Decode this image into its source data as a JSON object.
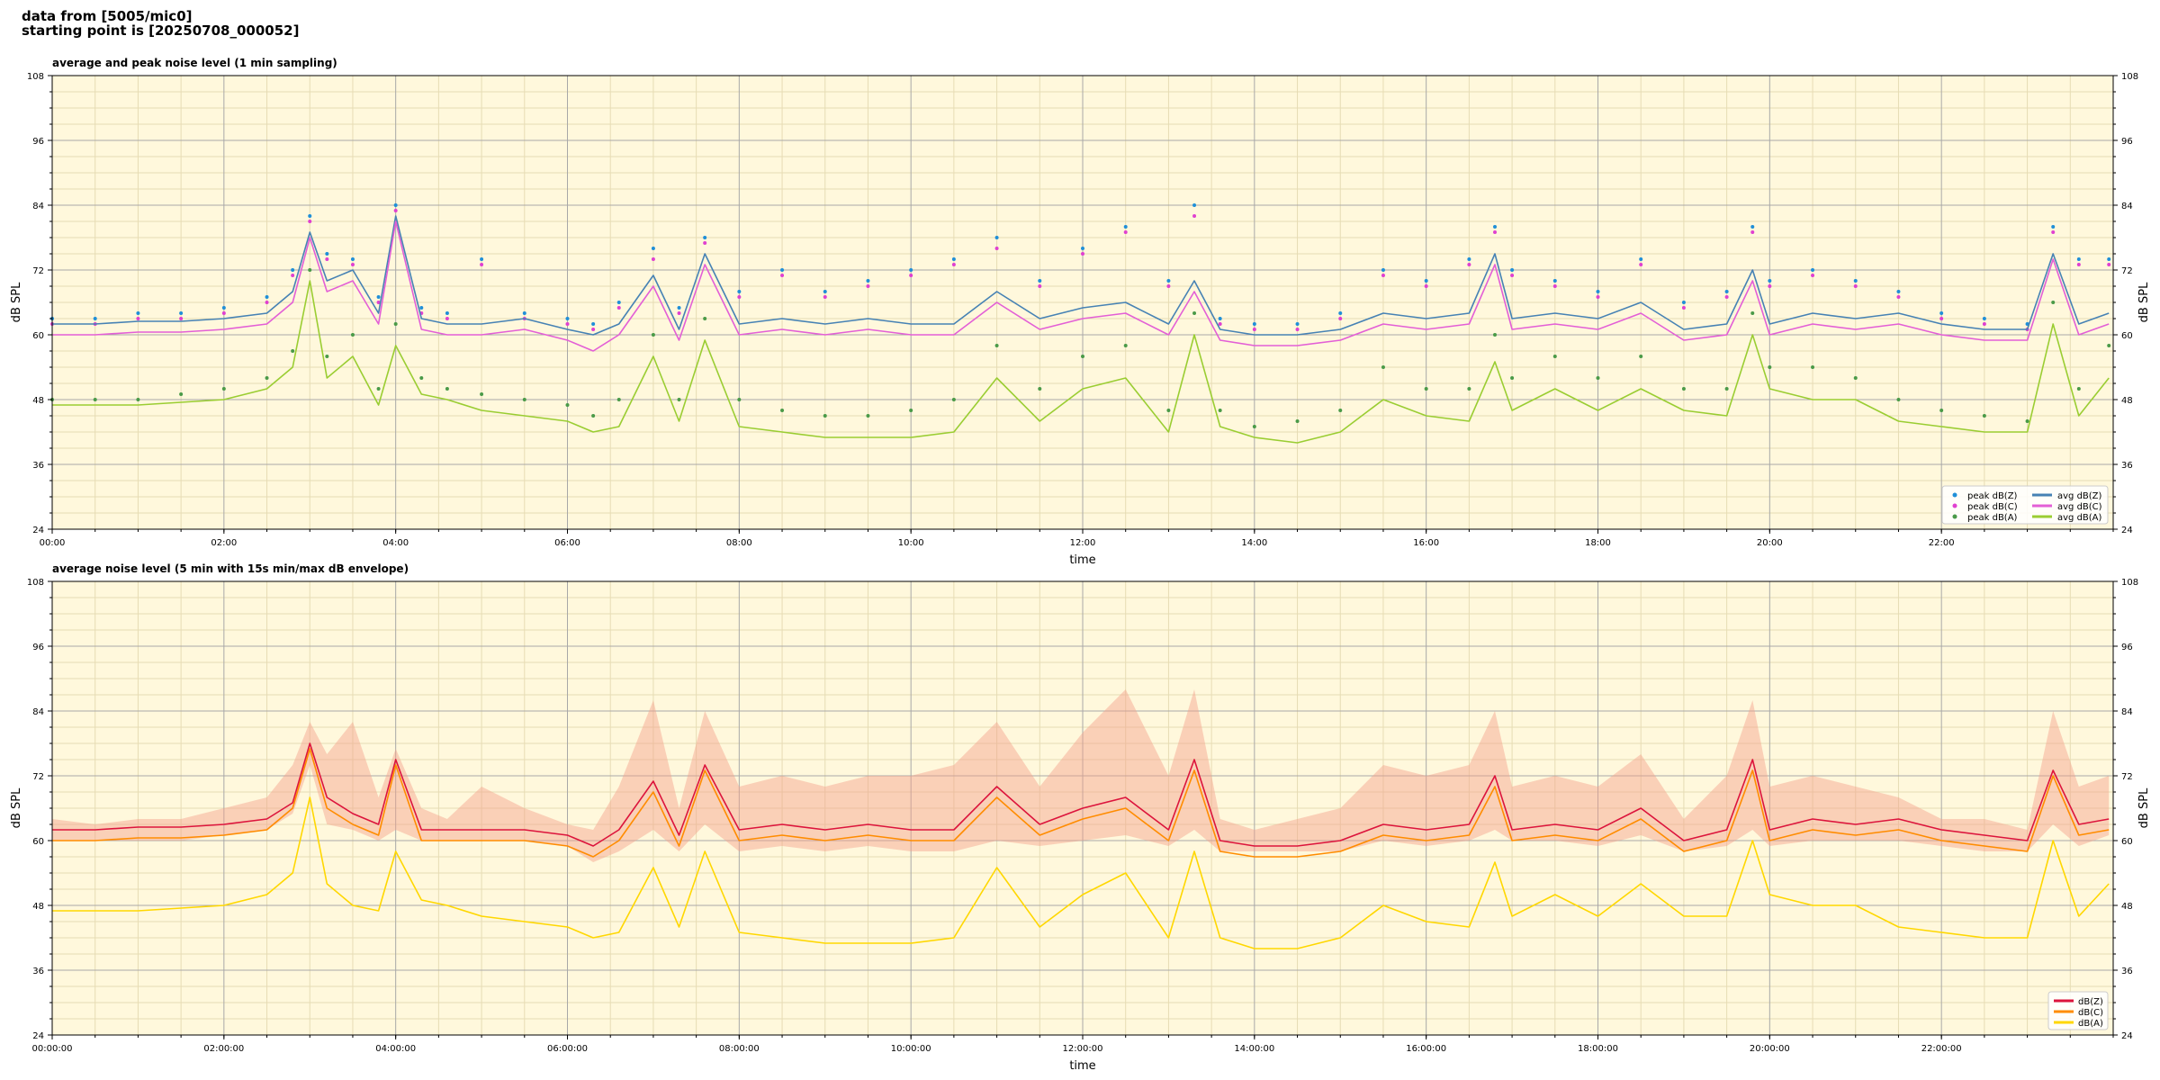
{
  "header": {
    "line1": "data from [5005/mic0]",
    "line2": "starting point is [20250708_000052]"
  },
  "colors": {
    "plot_bg": "#fff8dc",
    "grid_major": "#a8a8a8",
    "grid_minor": "#e6dcb4",
    "peak_z": "#1f8fd8",
    "peak_c": "#e040d0",
    "peak_a": "#4a9a48",
    "avg_z": "#4682b4",
    "avg_c": "#e35fd6",
    "avg_a": "#9acd32",
    "dbz": "#dc143c",
    "dbc": "#ff8c00",
    "dba": "#ffd700",
    "envelope": "#f4a08a"
  },
  "chart_data": [
    {
      "type": "line",
      "title": "average and peak noise level (1 min sampling)",
      "xlabel": "time",
      "ylabel": "dB SPL",
      "ylim": [
        24,
        108
      ],
      "xlim_hours": [
        0,
        24
      ],
      "yticks": [
        24,
        36,
        48,
        60,
        72,
        84,
        96,
        108
      ],
      "xtick_hours": [
        0,
        2,
        4,
        6,
        8,
        10,
        12,
        14,
        16,
        18,
        20,
        22
      ],
      "xtick_labels": [
        "00:00",
        "02:00",
        "04:00",
        "06:00",
        "08:00",
        "10:00",
        "12:00",
        "14:00",
        "16:00",
        "18:00",
        "20:00",
        "22:00"
      ],
      "grid": true,
      "legend_position": "lower-right",
      "legend_columns": 2,
      "x_hours": [
        0,
        0.5,
        1,
        1.5,
        2,
        2.5,
        2.8,
        3,
        3.2,
        3.5,
        3.8,
        4,
        4.3,
        4.6,
        5,
        5.5,
        6,
        6.3,
        6.6,
        7,
        7.3,
        7.6,
        8,
        8.5,
        9,
        9.5,
        10,
        10.5,
        11,
        11.5,
        12,
        12.5,
        13,
        13.3,
        13.6,
        14,
        14.5,
        15,
        15.5,
        16,
        16.5,
        16.8,
        17,
        17.5,
        18,
        18.5,
        19,
        19.5,
        19.8,
        20,
        20.5,
        21,
        21.5,
        22,
        22.5,
        23,
        23.3,
        23.6,
        23.95
      ],
      "series": [
        {
          "name": "avg dB(Z)",
          "style": "line",
          "values": [
            62,
            62,
            62.5,
            62.5,
            63,
            64,
            68,
            79,
            70,
            72,
            64,
            82,
            63,
            62,
            62,
            63,
            61,
            60,
            62,
            71,
            61,
            75,
            62,
            63,
            62,
            63,
            62,
            62,
            68,
            63,
            65,
            66,
            62,
            70,
            61,
            60,
            60,
            61,
            64,
            63,
            64,
            75,
            63,
            64,
            63,
            66,
            61,
            62,
            72,
            62,
            64,
            63,
            64,
            62,
            61,
            61,
            75,
            62,
            64
          ]
        },
        {
          "name": "avg dB(C)",
          "style": "line",
          "values": [
            60,
            60,
            60.5,
            60.5,
            61,
            62,
            66,
            78,
            68,
            70,
            62,
            81,
            61,
            60,
            60,
            61,
            59,
            57,
            60,
            69,
            59,
            73,
            60,
            61,
            60,
            61,
            60,
            60,
            66,
            61,
            63,
            64,
            60,
            68,
            59,
            58,
            58,
            59,
            62,
            61,
            62,
            73,
            61,
            62,
            61,
            64,
            59,
            60,
            70,
            60,
            62,
            61,
            62,
            60,
            59,
            59,
            74,
            60,
            62
          ]
        },
        {
          "name": "avg dB(A)",
          "style": "line",
          "values": [
            47,
            47,
            47,
            47.5,
            48,
            50,
            54,
            70,
            52,
            56,
            47,
            58,
            49,
            48,
            46,
            45,
            44,
            42,
            43,
            56,
            44,
            59,
            43,
            42,
            41,
            41,
            41,
            42,
            52,
            44,
            50,
            52,
            42,
            60,
            43,
            41,
            40,
            42,
            48,
            45,
            44,
            55,
            46,
            50,
            46,
            50,
            46,
            45,
            60,
            50,
            48,
            48,
            44,
            43,
            42,
            42,
            62,
            45,
            52
          ]
        },
        {
          "name": "peak dB(Z)",
          "style": "points",
          "values": [
            63,
            63,
            64,
            64,
            65,
            67,
            72,
            82,
            75,
            74,
            67,
            84,
            65,
            64,
            74,
            64,
            63,
            62,
            66,
            76,
            65,
            78,
            68,
            72,
            68,
            70,
            72,
            74,
            78,
            70,
            76,
            80,
            70,
            84,
            63,
            62,
            62,
            64,
            72,
            70,
            74,
            80,
            72,
            70,
            68,
            74,
            66,
            68,
            80,
            70,
            72,
            70,
            68,
            64,
            63,
            62,
            80,
            74,
            74
          ]
        },
        {
          "name": "peak dB(C)",
          "style": "points",
          "values": [
            62,
            62,
            63,
            63,
            64,
            66,
            71,
            81,
            74,
            73,
            66,
            83,
            64,
            63,
            73,
            63,
            62,
            61,
            65,
            74,
            64,
            77,
            67,
            71,
            67,
            69,
            71,
            73,
            76,
            69,
            75,
            79,
            69,
            82,
            62,
            61,
            61,
            63,
            71,
            69,
            73,
            79,
            71,
            69,
            67,
            73,
            65,
            67,
            79,
            69,
            71,
            69,
            67,
            63,
            62,
            61,
            79,
            73,
            73
          ]
        },
        {
          "name": "peak dB(A)",
          "style": "points",
          "values": [
            48,
            48,
            48,
            49,
            50,
            52,
            57,
            72,
            56,
            60,
            50,
            62,
            52,
            50,
            49,
            48,
            47,
            45,
            48,
            60,
            48,
            63,
            48,
            46,
            45,
            45,
            46,
            48,
            58,
            50,
            56,
            58,
            46,
            64,
            46,
            43,
            44,
            46,
            54,
            50,
            50,
            60,
            52,
            56,
            52,
            56,
            50,
            50,
            64,
            54,
            54,
            52,
            48,
            46,
            45,
            44,
            66,
            50,
            58
          ]
        }
      ]
    },
    {
      "type": "line",
      "title": "average noise level (5 min with 15s min/max dB envelope)",
      "xlabel": "time",
      "ylabel": "dB SPL",
      "ylim": [
        24,
        108
      ],
      "xlim_hours": [
        0,
        24
      ],
      "yticks": [
        24,
        36,
        48,
        60,
        72,
        84,
        96,
        108
      ],
      "xtick_hours": [
        0,
        2,
        4,
        6,
        8,
        10,
        12,
        14,
        16,
        18,
        20,
        22
      ],
      "xtick_labels": [
        "00:00:00",
        "02:00:00",
        "04:00:00",
        "06:00:00",
        "08:00:00",
        "10:00:00",
        "12:00:00",
        "14:00:00",
        "16:00:00",
        "18:00:00",
        "20:00:00",
        "22:00:00"
      ],
      "grid": true,
      "legend_position": "lower-right",
      "legend_columns": 1,
      "x_hours": [
        0,
        0.5,
        1,
        1.5,
        2,
        2.5,
        2.8,
        3,
        3.2,
        3.5,
        3.8,
        4,
        4.3,
        4.6,
        5,
        5.5,
        6,
        6.3,
        6.6,
        7,
        7.3,
        7.6,
        8,
        8.5,
        9,
        9.5,
        10,
        10.5,
        11,
        11.5,
        12,
        12.5,
        13,
        13.3,
        13.6,
        14,
        14.5,
        15,
        15.5,
        16,
        16.5,
        16.8,
        17,
        17.5,
        18,
        18.5,
        19,
        19.5,
        19.8,
        20,
        20.5,
        21,
        21.5,
        22,
        22.5,
        23,
        23.3,
        23.6,
        23.95
      ],
      "envelope": {
        "name": "min/max envelope",
        "low": [
          60,
          60,
          60,
          60,
          61,
          62,
          65,
          74,
          63,
          62,
          60,
          62,
          60,
          60,
          60,
          60,
          59,
          56,
          58,
          62,
          58,
          63,
          58,
          59,
          58,
          59,
          58,
          58,
          60,
          59,
          60,
          61,
          59,
          62,
          58,
          58,
          58,
          58,
          60,
          59,
          60,
          62,
          60,
          60,
          59,
          61,
          58,
          59,
          62,
          59,
          60,
          60,
          60,
          59,
          58,
          58,
          63,
          59,
          61
        ],
        "high": [
          64,
          63,
          64,
          64,
          66,
          68,
          74,
          82,
          76,
          82,
          68,
          77,
          66,
          64,
          70,
          66,
          63,
          62,
          70,
          86,
          66,
          84,
          70,
          72,
          70,
          72,
          72,
          74,
          82,
          70,
          80,
          88,
          72,
          88,
          64,
          62,
          64,
          66,
          74,
          72,
          74,
          84,
          70,
          72,
          70,
          76,
          64,
          72,
          86,
          70,
          72,
          70,
          68,
          64,
          64,
          62,
          84,
          70,
          72
        ]
      },
      "series": [
        {
          "name": "dB(Z)",
          "values": [
            62,
            62,
            62.5,
            62.5,
            63,
            64,
            67,
            78,
            68,
            65,
            63,
            75,
            62,
            62,
            62,
            62,
            61,
            59,
            62,
            71,
            61,
            74,
            62,
            63,
            62,
            63,
            62,
            62,
            70,
            63,
            66,
            68,
            62,
            75,
            60,
            59,
            59,
            60,
            63,
            62,
            63,
            72,
            62,
            63,
            62,
            66,
            60,
            62,
            75,
            62,
            64,
            63,
            64,
            62,
            61,
            60,
            73,
            63,
            64
          ]
        },
        {
          "name": "dB(C)",
          "values": [
            60,
            60,
            60.5,
            60.5,
            61,
            62,
            66,
            77,
            66,
            63,
            61,
            74,
            60,
            60,
            60,
            60,
            59,
            57,
            60,
            69,
            59,
            73,
            60,
            61,
            60,
            61,
            60,
            60,
            68,
            61,
            64,
            66,
            60,
            73,
            58,
            57,
            57,
            58,
            61,
            60,
            61,
            70,
            60,
            61,
            60,
            64,
            58,
            60,
            73,
            60,
            62,
            61,
            62,
            60,
            59,
            58,
            72,
            61,
            62
          ]
        },
        {
          "name": "dB(A)",
          "values": [
            47,
            47,
            47,
            47.5,
            48,
            50,
            54,
            68,
            52,
            48,
            47,
            58,
            49,
            48,
            46,
            45,
            44,
            42,
            43,
            55,
            44,
            58,
            43,
            42,
            41,
            41,
            41,
            42,
            55,
            44,
            50,
            54,
            42,
            58,
            42,
            40,
            40,
            42,
            48,
            45,
            44,
            56,
            46,
            50,
            46,
            52,
            46,
            46,
            60,
            50,
            48,
            48,
            44,
            43,
            42,
            42,
            60,
            46,
            52
          ]
        }
      ]
    }
  ]
}
